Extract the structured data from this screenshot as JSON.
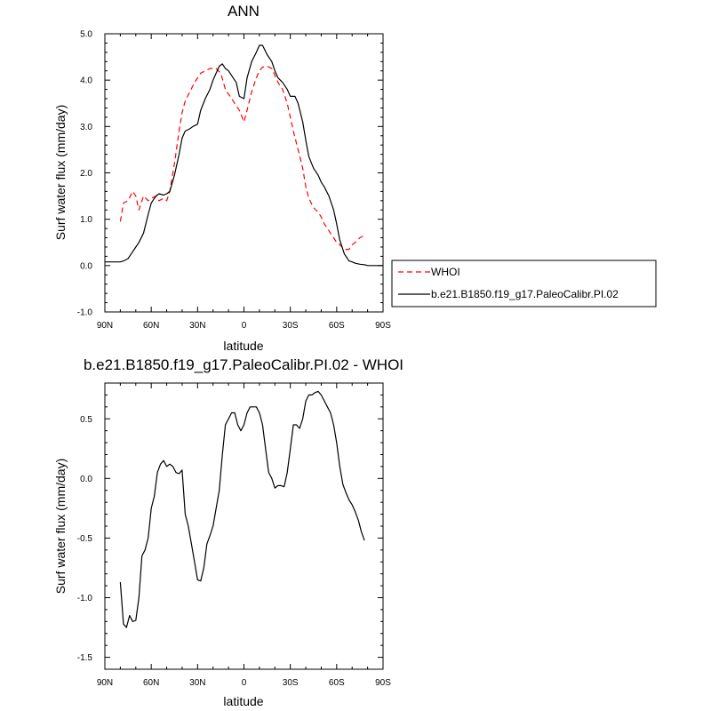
{
  "chart_data": [
    {
      "type": "line",
      "title": "ANN",
      "xlabel": "latitude",
      "ylabel": "Surf water flux (mm/day)",
      "xlim": [
        90,
        -90
      ],
      "ylim": [
        -1.0,
        5.0
      ],
      "xticks": [
        90,
        60,
        30,
        0,
        -30,
        -60,
        -90
      ],
      "xtick_labels": [
        "90N",
        "60N",
        "30N",
        "0",
        "30S",
        "60S",
        "90S"
      ],
      "yticks": [
        -1.0,
        0.0,
        1.0,
        2.0,
        3.0,
        4.0,
        5.0
      ],
      "ytick_labels": [
        "-1.0",
        "0.0",
        "1.0",
        "2.0",
        "3.0",
        "4.0",
        "5.0"
      ],
      "legend_position": "right",
      "series": [
        {
          "name": "WHOI",
          "color": "#ff0000",
          "dash": "dashed",
          "x": [
            80,
            78,
            75,
            72,
            70,
            68,
            65,
            62,
            60,
            57,
            55,
            52,
            50,
            48,
            45,
            42,
            40,
            38,
            35,
            32,
            28,
            25,
            22,
            20,
            18,
            15,
            12,
            10,
            8,
            5,
            3,
            0,
            -2,
            -5,
            -8,
            -10,
            -12,
            -15,
            -18,
            -20,
            -22,
            -25,
            -28,
            -30,
            -32,
            -35,
            -38,
            -40,
            -42,
            -45,
            -48,
            -50,
            -52,
            -55,
            -58,
            -60,
            -62,
            -65,
            -68,
            -70,
            -72,
            -75,
            -78
          ],
          "y": [
            0.95,
            1.35,
            1.4,
            1.6,
            1.5,
            1.2,
            1.5,
            1.4,
            1.45,
            1.5,
            1.4,
            1.45,
            1.4,
            1.6,
            2.2,
            2.9,
            3.3,
            3.55,
            3.75,
            3.95,
            4.15,
            4.2,
            4.25,
            4.25,
            4.25,
            4.15,
            3.8,
            3.7,
            3.6,
            3.45,
            3.35,
            3.1,
            3.35,
            3.75,
            4.05,
            4.2,
            4.28,
            4.3,
            4.25,
            4.1,
            3.95,
            3.8,
            3.5,
            3.2,
            2.9,
            2.5,
            2.1,
            1.7,
            1.45,
            1.25,
            1.15,
            1.05,
            0.9,
            0.75,
            0.6,
            0.5,
            0.45,
            0.35,
            0.35,
            0.45,
            0.5,
            0.6,
            0.65
          ]
        },
        {
          "name": "b.e21.B1850.f19_g17.PaleoCalibr.PI.02",
          "color": "#000000",
          "dash": "solid",
          "x": [
            90,
            85,
            80,
            78,
            75,
            72,
            70,
            68,
            65,
            62,
            60,
            57,
            55,
            52,
            50,
            48,
            45,
            42,
            40,
            38,
            35,
            33,
            30,
            28,
            25,
            22,
            20,
            18,
            16,
            14,
            12,
            10,
            8,
            5,
            3,
            0,
            -2,
            -5,
            -8,
            -10,
            -12,
            -15,
            -18,
            -20,
            -22,
            -25,
            -28,
            -30,
            -33,
            -35,
            -38,
            -40,
            -42,
            -45,
            -48,
            -50,
            -52,
            -55,
            -58,
            -60,
            -62,
            -65,
            -68,
            -70,
            -72,
            -75,
            -78,
            -80,
            -85,
            -90
          ],
          "y": [
            0.08,
            0.08,
            0.08,
            0.1,
            0.15,
            0.3,
            0.4,
            0.5,
            0.7,
            1.1,
            1.35,
            1.5,
            1.55,
            1.52,
            1.55,
            1.6,
            1.95,
            2.4,
            2.75,
            2.9,
            2.95,
            3.0,
            3.05,
            3.35,
            3.6,
            3.8,
            4.0,
            4.15,
            4.3,
            4.35,
            4.25,
            4.2,
            4.1,
            3.95,
            3.65,
            3.6,
            4.05,
            4.4,
            4.6,
            4.75,
            4.75,
            4.55,
            4.4,
            4.2,
            4.05,
            3.95,
            3.8,
            3.65,
            3.65,
            3.5,
            3.1,
            2.7,
            2.35,
            2.1,
            1.95,
            1.8,
            1.7,
            1.5,
            1.2,
            0.9,
            0.55,
            0.25,
            0.1,
            0.08,
            0.05,
            0.03,
            0.02,
            0.0,
            0.0,
            0.0
          ]
        }
      ]
    },
    {
      "type": "line",
      "title": "b.e21.B1850.f19_g17.PaleoCalibr.PI.02 - WHOI",
      "xlabel": "latitude",
      "ylabel": "Surf water flux (mm/day)",
      "xlim": [
        90,
        -90
      ],
      "ylim": [
        -1.6,
        0.8
      ],
      "xticks": [
        90,
        60,
        30,
        0,
        -30,
        -60,
        -90
      ],
      "xtick_labels": [
        "90N",
        "60N",
        "30N",
        "0",
        "30S",
        "60S",
        "90S"
      ],
      "yticks": [
        -1.5,
        -1.0,
        -0.5,
        0.0,
        0.5
      ],
      "ytick_labels": [
        "-1.5",
        "-1.0",
        "-0.5",
        "0.0",
        "0.5"
      ],
      "series": [
        {
          "color": "#000000",
          "dash": "solid",
          "x": [
            80,
            78,
            76,
            74,
            72,
            70,
            68,
            66,
            64,
            62,
            60,
            58,
            56,
            54,
            52,
            50,
            48,
            46,
            44,
            42,
            40,
            38,
            36,
            34,
            32,
            30,
            28,
            26,
            24,
            22,
            20,
            18,
            16,
            14,
            12,
            10,
            8,
            6,
            4,
            2,
            0,
            -2,
            -4,
            -6,
            -8,
            -10,
            -12,
            -14,
            -16,
            -18,
            -20,
            -22,
            -24,
            -26,
            -28,
            -30,
            -32,
            -34,
            -36,
            -38,
            -40,
            -42,
            -44,
            -46,
            -48,
            -50,
            -52,
            -54,
            -56,
            -58,
            -60,
            -62,
            -64,
            -66,
            -68,
            -70,
            -72,
            -74,
            -76,
            -78
          ],
          "y": [
            -0.87,
            -1.22,
            -1.25,
            -1.15,
            -1.2,
            -1.19,
            -1.0,
            -0.65,
            -0.6,
            -0.5,
            -0.25,
            -0.15,
            0.05,
            0.12,
            0.15,
            0.1,
            0.12,
            0.1,
            0.05,
            0.04,
            0.07,
            -0.3,
            -0.4,
            -0.55,
            -0.7,
            -0.85,
            -0.86,
            -0.75,
            -0.55,
            -0.48,
            -0.4,
            -0.25,
            -0.1,
            0.2,
            0.45,
            0.5,
            0.55,
            0.55,
            0.45,
            0.4,
            0.45,
            0.55,
            0.6,
            0.6,
            0.6,
            0.55,
            0.45,
            0.25,
            0.05,
            0.0,
            -0.08,
            -0.06,
            -0.06,
            -0.07,
            0.05,
            0.25,
            0.45,
            0.45,
            0.42,
            0.5,
            0.65,
            0.7,
            0.7,
            0.72,
            0.73,
            0.7,
            0.65,
            0.6,
            0.55,
            0.45,
            0.3,
            0.1,
            -0.05,
            -0.12,
            -0.18,
            -0.22,
            -0.28,
            -0.35,
            -0.45,
            -0.52
          ]
        }
      ]
    }
  ]
}
